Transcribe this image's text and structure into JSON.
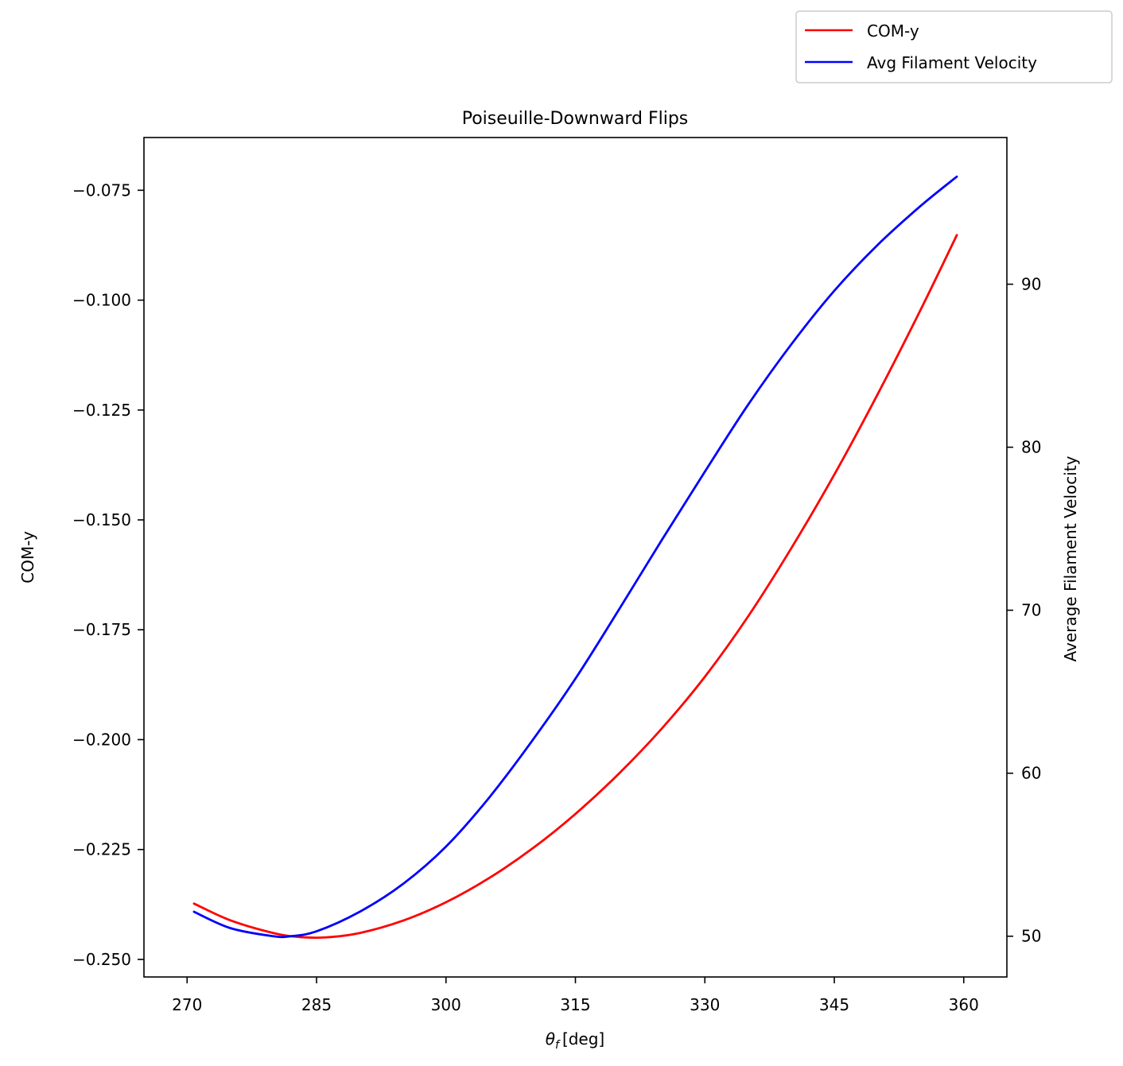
{
  "chart_data": {
    "type": "line",
    "title": "Poiseuille-Downward Flips",
    "xlabel_symbol": "θ",
    "xlabel_subscript": "f",
    "xlabel_unit": "[deg]",
    "ylabel_left": "COM-y",
    "ylabel_right": "Average Filament Velocity",
    "xlim": [
      265,
      365
    ],
    "ylim_left": [
      -0.254,
      -0.063
    ],
    "ylim_right": [
      47.5,
      99
    ],
    "x_ticks": [
      270,
      285,
      300,
      315,
      330,
      345,
      360
    ],
    "y_left_ticks": [
      -0.075,
      -0.1,
      -0.125,
      -0.15,
      -0.175,
      -0.2,
      -0.225,
      -0.25
    ],
    "y_left_tick_labels": [
      "−0.075",
      "−0.100",
      "−0.125",
      "−0.150",
      "−0.175",
      "−0.200",
      "−0.225",
      "−0.250"
    ],
    "y_right_ticks": [
      50,
      60,
      70,
      80,
      90
    ],
    "y_right_tick_labels": [
      "50",
      "60",
      "70",
      "80",
      "90"
    ],
    "legend_position": "above-right",
    "grid": false,
    "series": [
      {
        "name": "COM-y",
        "axis": "left",
        "color": "#ff0000",
        "x": [
          270.8,
          275,
          280,
          283,
          286,
          290,
          295,
          300,
          305,
          310,
          315,
          320,
          325,
          330,
          335,
          340,
          345,
          350,
          355,
          359.2
        ],
        "y": [
          -0.2373,
          -0.2411,
          -0.244,
          -0.2449,
          -0.245,
          -0.244,
          -0.2412,
          -0.237,
          -0.2315,
          -0.2248,
          -0.2169,
          -0.2078,
          -0.1975,
          -0.1857,
          -0.172,
          -0.1565,
          -0.1397,
          -0.1215,
          -0.1022,
          -0.0852
        ]
      },
      {
        "name": "Avg Filament Velocity",
        "axis": "right",
        "color": "#0000ff",
        "x": [
          270.8,
          275,
          280,
          282,
          285,
          290,
          295,
          300,
          305,
          310,
          315,
          320,
          325,
          330,
          335,
          340,
          345,
          350,
          355,
          359.2
        ],
        "y": [
          51.5,
          50.5,
          50.0,
          50.0,
          50.3,
          51.5,
          53.2,
          55.5,
          58.5,
          62.0,
          65.8,
          70.0,
          74.3,
          78.5,
          82.6,
          86.3,
          89.6,
          92.4,
          94.8,
          96.6
        ]
      }
    ]
  }
}
